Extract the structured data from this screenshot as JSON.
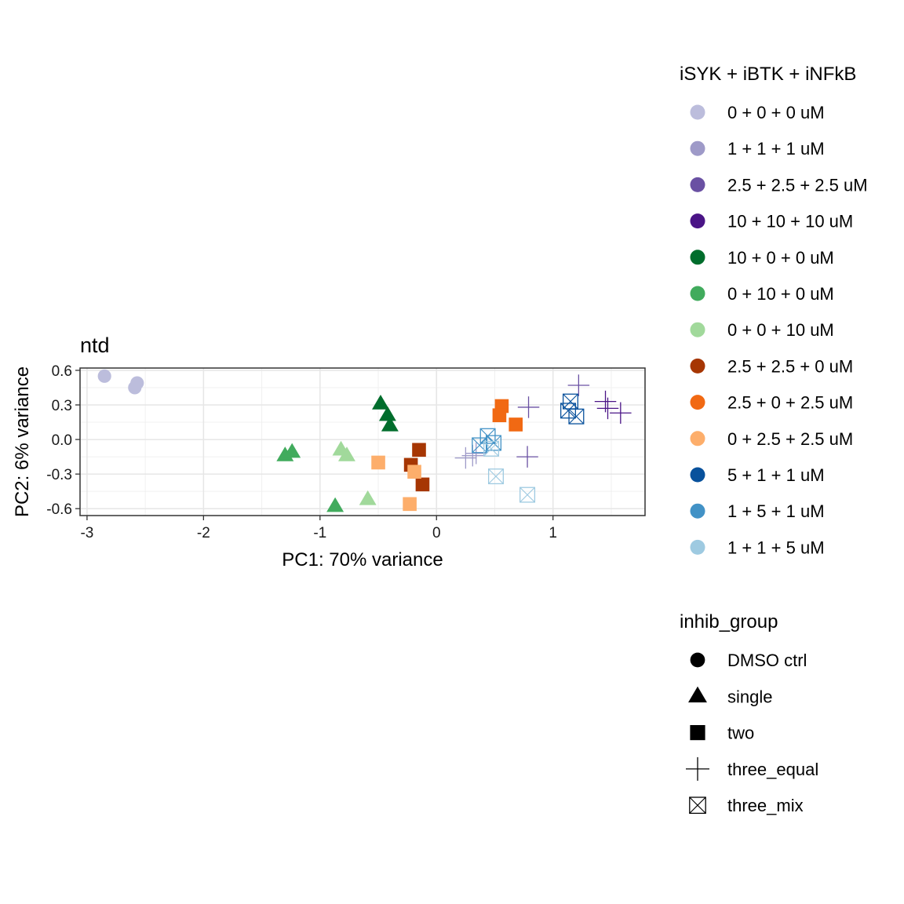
{
  "chart_data": {
    "type": "scatter",
    "title": "ntd",
    "xlabel": "PC1: 70% variance",
    "ylabel": "PC2: 6% variance",
    "xlim": [
      -3.06,
      1.79
    ],
    "ylim": [
      -0.66,
      0.62
    ],
    "xticks": [
      -3,
      -2,
      -1,
      0,
      1
    ],
    "xtick_labels": [
      "-3",
      "-2",
      "-1",
      "0",
      "1"
    ],
    "yticks": [
      -0.6,
      -0.3,
      0.0,
      0.3,
      0.6
    ],
    "ytick_labels": [
      "-0.6",
      "-0.3",
      "0.0",
      "0.3",
      "0.6"
    ],
    "grid": true,
    "legend_position": "right",
    "color_legend": {
      "title": "iSYK + iBTK + iNFkB",
      "entries": [
        {
          "label": "0 + 0 + 0 uM",
          "color": "#bcbddc"
        },
        {
          "label": "1 + 1 + 1 uM",
          "color": "#9e9ac8"
        },
        {
          "label": "2.5 + 2.5 + 2.5 uM",
          "color": "#6a51a3"
        },
        {
          "label": "10 + 10 + 10 uM",
          "color": "#4a1486"
        },
        {
          "label": "10 + 0 + 0 uM",
          "color": "#006d2c"
        },
        {
          "label": "0 + 10 + 0 uM",
          "color": "#41ab5d"
        },
        {
          "label": "0 + 0 + 10 uM",
          "color": "#a1d99b"
        },
        {
          "label": "2.5 + 2.5 + 0 uM",
          "color": "#a63603"
        },
        {
          "label": "2.5 + 0 + 2.5 uM",
          "color": "#f16913"
        },
        {
          "label": "0 + 2.5 + 2.5 uM",
          "color": "#fdae6b"
        },
        {
          "label": "5 + 1 + 1 uM",
          "color": "#08519c"
        },
        {
          "label": "1 + 5 + 1 uM",
          "color": "#4292c6"
        },
        {
          "label": "1 + 1 + 5 uM",
          "color": "#9ecae1"
        }
      ]
    },
    "shape_legend": {
      "title": "inhib_group",
      "entries": [
        {
          "label": "DMSO ctrl",
          "shape": "circle"
        },
        {
          "label": "single",
          "shape": "triangle"
        },
        {
          "label": "two",
          "shape": "square"
        },
        {
          "label": "three_equal",
          "shape": "plus"
        },
        {
          "label": "three_mix",
          "shape": "boxcross"
        }
      ]
    },
    "points": [
      {
        "x": -2.85,
        "y": 0.55,
        "color": "#bcbddc",
        "shape": "circle"
      },
      {
        "x": -2.57,
        "y": 0.49,
        "color": "#bcbddc",
        "shape": "circle"
      },
      {
        "x": -2.59,
        "y": 0.45,
        "color": "#bcbddc",
        "shape": "circle"
      },
      {
        "x": 0.25,
        "y": -0.16,
        "color": "#9e9ac8",
        "shape": "plus"
      },
      {
        "x": 0.31,
        "y": -0.14,
        "color": "#9e9ac8",
        "shape": "plus"
      },
      {
        "x": 0.34,
        "y": -0.12,
        "color": "#9e9ac8",
        "shape": "plus"
      },
      {
        "x": 0.79,
        "y": 0.28,
        "color": "#6a51a3",
        "shape": "plus"
      },
      {
        "x": 0.78,
        "y": -0.15,
        "color": "#6a51a3",
        "shape": "plus"
      },
      {
        "x": 1.22,
        "y": 0.47,
        "color": "#6a51a3",
        "shape": "plus"
      },
      {
        "x": 1.45,
        "y": 0.33,
        "color": "#4a1486",
        "shape": "plus"
      },
      {
        "x": 1.47,
        "y": 0.27,
        "color": "#4a1486",
        "shape": "plus"
      },
      {
        "x": 1.58,
        "y": 0.23,
        "color": "#4a1486",
        "shape": "plus"
      },
      {
        "x": -0.48,
        "y": 0.31,
        "color": "#006d2c",
        "shape": "triangle"
      },
      {
        "x": -0.42,
        "y": 0.21,
        "color": "#006d2c",
        "shape": "triangle"
      },
      {
        "x": -0.4,
        "y": 0.12,
        "color": "#006d2c",
        "shape": "triangle"
      },
      {
        "x": -1.3,
        "y": -0.14,
        "color": "#41ab5d",
        "shape": "triangle"
      },
      {
        "x": -1.24,
        "y": -0.11,
        "color": "#41ab5d",
        "shape": "triangle"
      },
      {
        "x": -0.87,
        "y": -0.58,
        "color": "#41ab5d",
        "shape": "triangle"
      },
      {
        "x": -0.82,
        "y": -0.09,
        "color": "#a1d99b",
        "shape": "triangle"
      },
      {
        "x": -0.77,
        "y": -0.14,
        "color": "#a1d99b",
        "shape": "triangle"
      },
      {
        "x": -0.59,
        "y": -0.52,
        "color": "#a1d99b",
        "shape": "triangle"
      },
      {
        "x": -0.15,
        "y": -0.09,
        "color": "#a63603",
        "shape": "square"
      },
      {
        "x": -0.22,
        "y": -0.22,
        "color": "#a63603",
        "shape": "square"
      },
      {
        "x": -0.12,
        "y": -0.39,
        "color": "#a63603",
        "shape": "square"
      },
      {
        "x": 0.56,
        "y": 0.29,
        "color": "#f16913",
        "shape": "square"
      },
      {
        "x": 0.54,
        "y": 0.21,
        "color": "#f16913",
        "shape": "square"
      },
      {
        "x": 0.68,
        "y": 0.13,
        "color": "#f16913",
        "shape": "square"
      },
      {
        "x": -0.5,
        "y": -0.2,
        "color": "#fdae6b",
        "shape": "square"
      },
      {
        "x": -0.19,
        "y": -0.28,
        "color": "#fdae6b",
        "shape": "square"
      },
      {
        "x": -0.23,
        "y": -0.56,
        "color": "#fdae6b",
        "shape": "square"
      },
      {
        "x": 1.15,
        "y": 0.33,
        "color": "#08519c",
        "shape": "boxcross"
      },
      {
        "x": 1.13,
        "y": 0.25,
        "color": "#08519c",
        "shape": "boxcross"
      },
      {
        "x": 1.2,
        "y": 0.2,
        "color": "#08519c",
        "shape": "boxcross"
      },
      {
        "x": 0.37,
        "y": -0.05,
        "color": "#4292c6",
        "shape": "boxcross"
      },
      {
        "x": 0.44,
        "y": 0.03,
        "color": "#4292c6",
        "shape": "boxcross"
      },
      {
        "x": 0.49,
        "y": -0.03,
        "color": "#4292c6",
        "shape": "boxcross"
      },
      {
        "x": 0.47,
        "y": -0.08,
        "color": "#9ecae1",
        "shape": "boxcross"
      },
      {
        "x": 0.51,
        "y": -0.32,
        "color": "#9ecae1",
        "shape": "boxcross"
      },
      {
        "x": 0.78,
        "y": -0.48,
        "color": "#9ecae1",
        "shape": "boxcross"
      }
    ]
  }
}
